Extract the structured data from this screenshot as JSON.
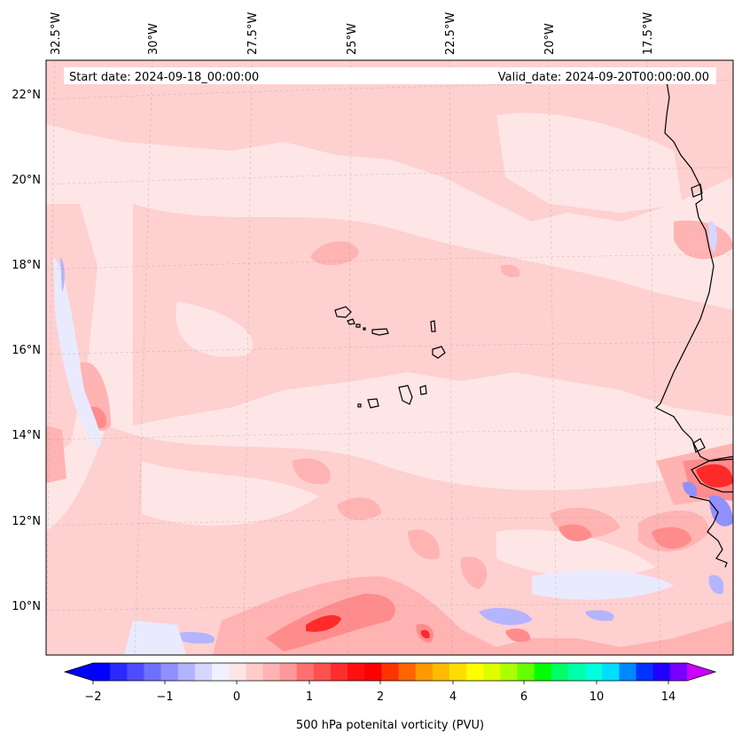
{
  "map": {
    "start_date": "Start date: 2024-09-18_00:00:00",
    "valid_date": "Valid_date: 2024-09-20T00:00:00.00",
    "longitude_labels": [
      "32.5°W",
      "30°W",
      "27.5°W",
      "25°W",
      "22.5°W",
      "20°W",
      "17.5°W"
    ],
    "latitude_labels": [
      "22°N",
      "20°N",
      "18°N",
      "16°N",
      "14°N",
      "12°N",
      "10°N"
    ],
    "colors": {
      "background_pale_pink": "#ffe6e6",
      "light_pink": "#ffd0d0",
      "pink": "#ffb3b3",
      "salmon": "#ff8c8c",
      "red": "#ff2a2a",
      "pale_blue": "#eaeaff",
      "blue": "#b4b4ff",
      "coastline": "#000000"
    }
  },
  "colorbar": {
    "label": "500 hPa potenital vorticity (PVU)",
    "ticks": [
      "−2",
      "−1",
      "0",
      "1",
      "2",
      "4",
      "6",
      "10",
      "14"
    ],
    "colors": [
      "#0000ff",
      "#2a2aff",
      "#4d4dff",
      "#7070ff",
      "#9090ff",
      "#b3b3ff",
      "#d6d6ff",
      "#f0f0ff",
      "#ffe6e6",
      "#ffcccc",
      "#ffb3b3",
      "#ff9999",
      "#ff7070",
      "#ff5050",
      "#ff2d2d",
      "#ff0f0f",
      "#ff0000",
      "#ff3300",
      "#ff6600",
      "#ff9900",
      "#ffbb00",
      "#ffdd00",
      "#ffff00",
      "#ddff00",
      "#aaff00",
      "#66ff00",
      "#00ff00",
      "#00ff66",
      "#00ffaa",
      "#00ffdd",
      "#00ddff",
      "#0088ff",
      "#0033ff",
      "#2200ff",
      "#7700ff"
    ],
    "under_color": "#0000ff",
    "over_color": "#cc00ff"
  }
}
